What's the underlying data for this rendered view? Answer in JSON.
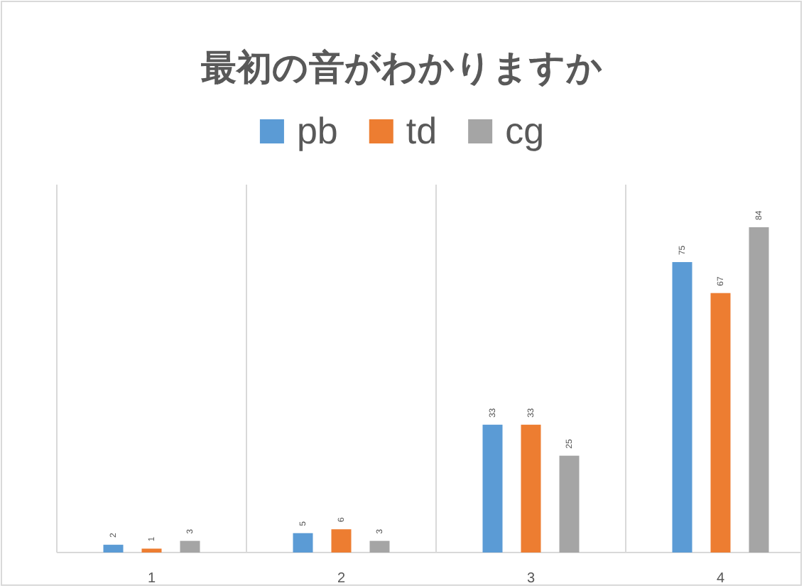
{
  "chart_data": {
    "type": "bar",
    "title": "最初の音がわかりますか",
    "categories": [
      "1",
      "2",
      "3",
      "4"
    ],
    "series": [
      {
        "name": "pb",
        "color": "#5b9bd5",
        "values": [
          2,
          5,
          33,
          75
        ]
      },
      {
        "name": "td",
        "color": "#ed7d31",
        "values": [
          1,
          6,
          33,
          67
        ]
      },
      {
        "name": "cg",
        "color": "#a5a5a5",
        "values": [
          3,
          3,
          25,
          84
        ]
      }
    ],
    "ylim": [
      0,
      95
    ],
    "data_labels": true,
    "legend": "top",
    "grid": "x"
  }
}
